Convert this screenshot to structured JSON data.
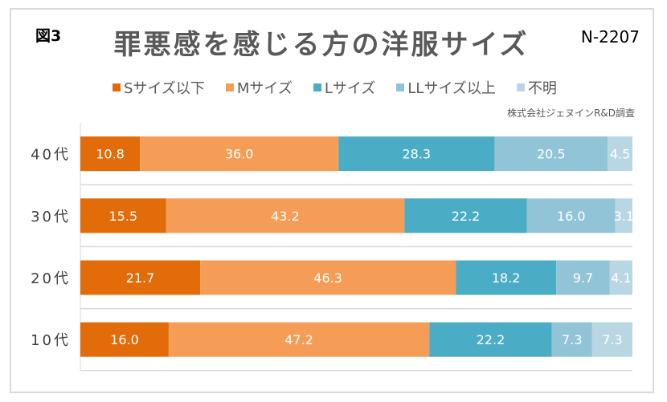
{
  "figure_label": "図3",
  "sample_size": "N-2207",
  "source": "株式会社ジェヌインR&D調査",
  "chart_data": {
    "type": "bar",
    "orientation": "horizontal",
    "stacked": "percent",
    "title": "罪悪感を感じる方の洋服サイズ",
    "categories": [
      "40代",
      "30代",
      "20代",
      "10代"
    ],
    "series": [
      {
        "name": "Sサイズ以下",
        "color": "#E36C0A",
        "values": [
          10.8,
          15.5,
          21.7,
          16.0
        ]
      },
      {
        "name": "Mサイズ",
        "color": "#F59D56",
        "values": [
          36.0,
          43.2,
          46.3,
          47.2
        ]
      },
      {
        "name": "Lサイズ",
        "color": "#4BACC6",
        "values": [
          28.3,
          22.2,
          18.2,
          22.2
        ]
      },
      {
        "name": "LLサイズ以上",
        "color": "#92C4D7",
        "values": [
          20.5,
          16.0,
          9.7,
          7.3
        ]
      },
      {
        "name": "不明",
        "color": "#B9D7E3",
        "values": [
          4.5,
          3.1,
          4.1,
          7.3
        ]
      }
    ],
    "value_labels": [
      [
        "10.8",
        "36.0",
        "28.3",
        "20.5",
        "4.5"
      ],
      [
        "15.5",
        "43.2",
        "22.2",
        "16.0",
        "3.1"
      ],
      [
        "21.7",
        "46.3",
        "18.2",
        "9.7",
        "4.1"
      ],
      [
        "16.0",
        "47.2",
        "22.2",
        "7.3",
        "7.3"
      ]
    ],
    "xlim": [
      0,
      100
    ],
    "legend_position": "top"
  }
}
